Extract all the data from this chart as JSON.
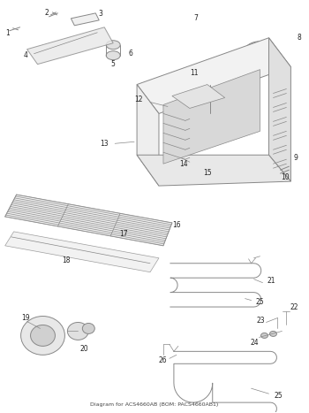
{
  "title": "Diagram for ACS4660AB (BOM: PACS4660AB1)",
  "bg": "#ffffff",
  "lc": "#888888",
  "lc_dark": "#555555",
  "fig_width": 3.5,
  "fig_height": 4.67,
  "dpi": 100
}
